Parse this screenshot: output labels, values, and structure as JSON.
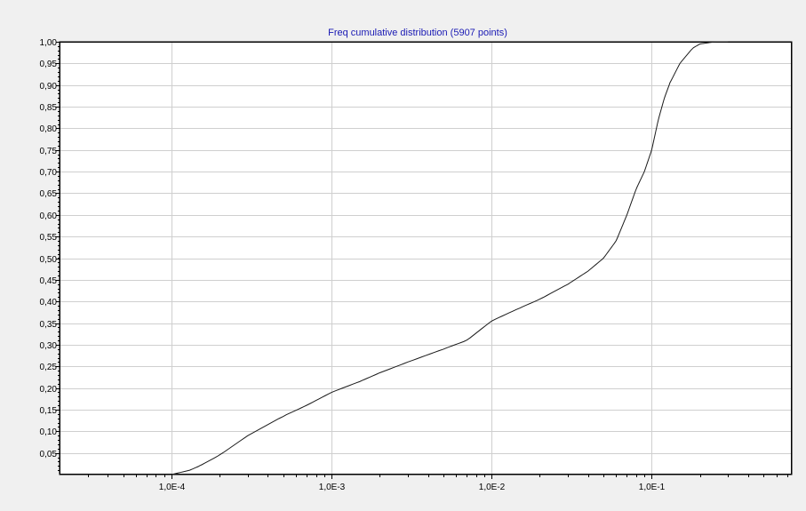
{
  "chart_data": {
    "type": "line",
    "title": "Freq cumulative distribution (5907 points)",
    "xlabel": "",
    "ylabel": "",
    "xscale": "log",
    "xlim": [
      2e-05,
      0.75
    ],
    "ylim": [
      0,
      1
    ],
    "grid": true,
    "legend": "none",
    "x_ticks": [
      {
        "value": 0.0001,
        "label": "1,0E-4"
      },
      {
        "value": 0.001,
        "label": "1,0E-3"
      },
      {
        "value": 0.01,
        "label": "1,0E-2"
      },
      {
        "value": 0.1,
        "label": "1,0E-1"
      }
    ],
    "y_ticks": [
      {
        "value": 0.05,
        "label": "0,05"
      },
      {
        "value": 0.1,
        "label": "0,10"
      },
      {
        "value": 0.15,
        "label": "0,15"
      },
      {
        "value": 0.2,
        "label": "0,20"
      },
      {
        "value": 0.25,
        "label": "0,25"
      },
      {
        "value": 0.3,
        "label": "0,30"
      },
      {
        "value": 0.35,
        "label": "0,35"
      },
      {
        "value": 0.4,
        "label": "0,40"
      },
      {
        "value": 0.45,
        "label": "0,45"
      },
      {
        "value": 0.5,
        "label": "0,50"
      },
      {
        "value": 0.55,
        "label": "0,55"
      },
      {
        "value": 0.6,
        "label": "0,60"
      },
      {
        "value": 0.65,
        "label": "0,65"
      },
      {
        "value": 0.7,
        "label": "0,70"
      },
      {
        "value": 0.75,
        "label": "0,75"
      },
      {
        "value": 0.8,
        "label": "0,80"
      },
      {
        "value": 0.85,
        "label": "0,85"
      },
      {
        "value": 0.9,
        "label": "0,90"
      },
      {
        "value": 0.95,
        "label": "0,95"
      },
      {
        "value": 1.0,
        "label": "1,00"
      }
    ],
    "series": [
      {
        "color": "#1a1a1a",
        "x": [
          0.0001,
          0.00013,
          0.00015,
          0.0002,
          0.0003,
          0.0005,
          0.0007,
          0.001,
          0.0015,
          0.002,
          0.003,
          0.005,
          0.007,
          0.01,
          0.015,
          0.02,
          0.03,
          0.04,
          0.05,
          0.06,
          0.07,
          0.08,
          0.09,
          0.1,
          0.11,
          0.12,
          0.13,
          0.15,
          0.18,
          0.2,
          0.25,
          0.3
        ],
        "y": [
          0.0,
          0.01,
          0.02,
          0.045,
          0.09,
          0.135,
          0.16,
          0.19,
          0.215,
          0.235,
          0.26,
          0.29,
          0.31,
          0.355,
          0.385,
          0.405,
          0.44,
          0.47,
          0.5,
          0.54,
          0.6,
          0.66,
          0.7,
          0.75,
          0.82,
          0.87,
          0.905,
          0.95,
          0.985,
          0.995,
          1.0,
          1.0
        ]
      }
    ]
  }
}
